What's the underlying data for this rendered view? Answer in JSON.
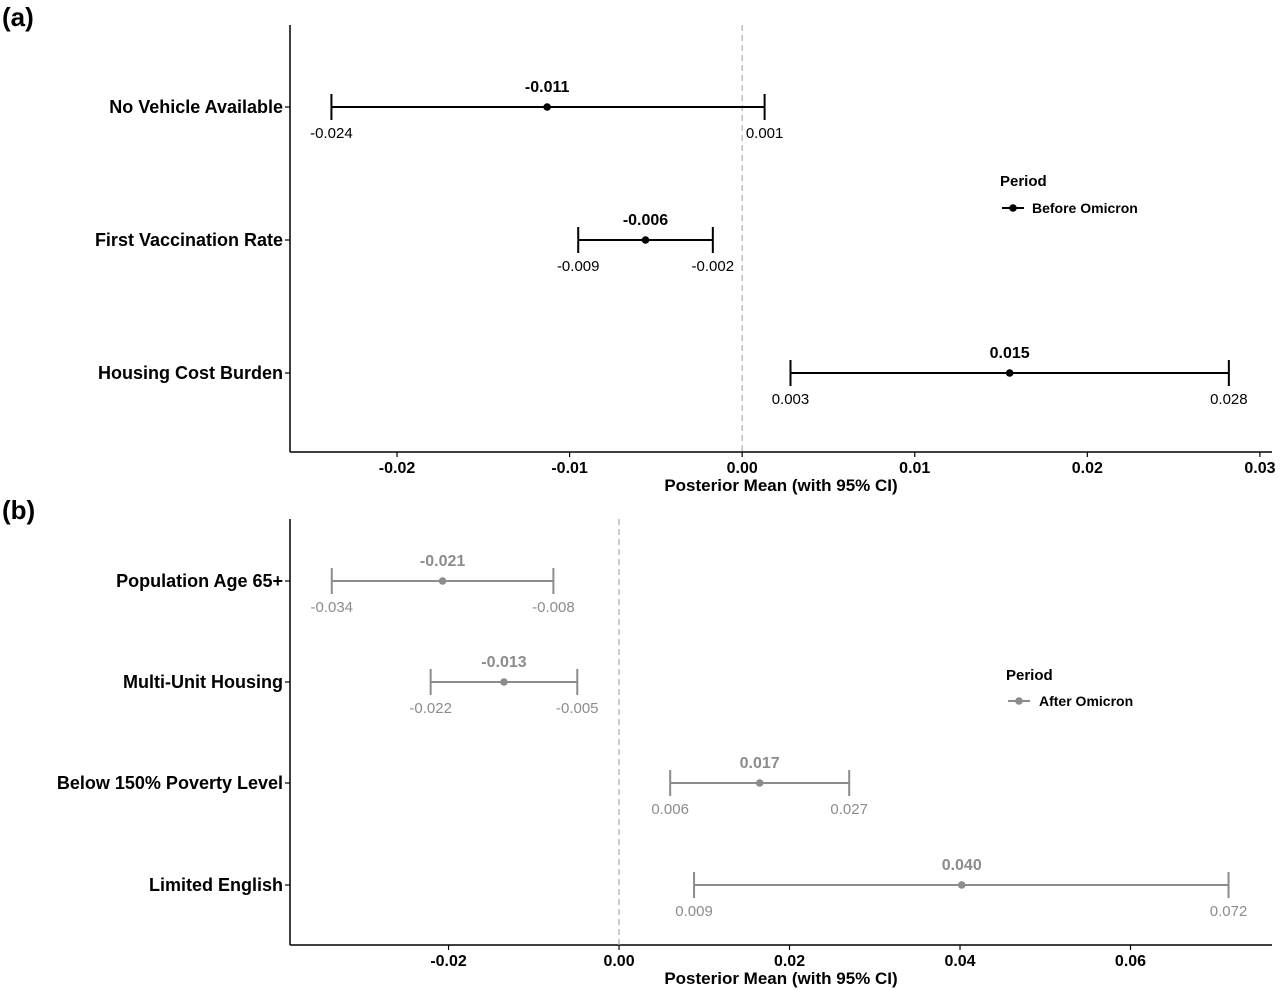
{
  "chart_data": [
    {
      "type": "forest",
      "panel_label": "(a)",
      "xlabel": "Posterior Mean (with 95% CI)",
      "xlim": [
        -0.0262,
        0.0307
      ],
      "xticks": [
        "-0.02",
        "-0.01",
        "0.00",
        "0.01",
        "0.02",
        "0.03"
      ],
      "reference_line": 0,
      "color": "#000000",
      "legend": {
        "title": "Period",
        "label": "Before Omicron",
        "placement": "right"
      },
      "rows": [
        {
          "label": "No Vehicle Available",
          "mean": -0.0113,
          "lower": -0.0238,
          "upper": 0.0013,
          "mean_label": "-0.011",
          "lower_label": "-0.024",
          "upper_label": "0.001"
        },
        {
          "label": "First Vaccination Rate",
          "mean": -0.0056,
          "lower": -0.0095,
          "upper": -0.0017,
          "mean_label": "-0.006",
          "lower_label": "-0.009",
          "upper_label": "-0.002"
        },
        {
          "label": "Housing Cost Burden",
          "mean": 0.0155,
          "lower": 0.0028,
          "upper": 0.0282,
          "mean_label": "0.015",
          "lower_label": "0.003",
          "upper_label": "0.028"
        }
      ]
    },
    {
      "type": "forest",
      "panel_label": "(b)",
      "xlabel": "Posterior Mean (with 95% CI)",
      "xlim": [
        -0.0386,
        0.0766
      ],
      "xticks": [
        "-0.02",
        "0.00",
        "0.02",
        "0.04",
        "0.06"
      ],
      "reference_line": 0,
      "color": "#8c8c8c",
      "legend": {
        "title": "Period",
        "label": "After Omicron",
        "placement": "right"
      },
      "rows": [
        {
          "label": "Population Age 65+",
          "mean": -0.0207,
          "lower": -0.0337,
          "upper": -0.0077,
          "mean_label": "-0.021",
          "lower_label": "-0.034",
          "upper_label": "-0.008"
        },
        {
          "label": "Multi-Unit Housing",
          "mean": -0.0135,
          "lower": -0.0221,
          "upper": -0.0049,
          "mean_label": "-0.013",
          "lower_label": "-0.022",
          "upper_label": "-0.005"
        },
        {
          "label": "Below 150% Poverty Level",
          "mean": 0.0165,
          "lower": 0.006,
          "upper": 0.027,
          "mean_label": "0.017",
          "lower_label": "0.006",
          "upper_label": "0.027"
        },
        {
          "label": "Limited English",
          "mean": 0.0402,
          "lower": 0.0088,
          "upper": 0.0715,
          "mean_label": "0.040",
          "lower_label": "0.009",
          "upper_label": "0.072"
        }
      ]
    }
  ]
}
